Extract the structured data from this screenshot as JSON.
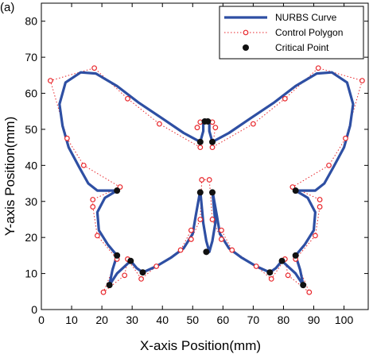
{
  "chart_data": {
    "type": "line",
    "corner_label": "(a)",
    "xlabel": "X-axis Position(mm)",
    "ylabel": "Y-axis Position(mm)",
    "xlim": [
      0,
      108
    ],
    "ylim": [
      0,
      85
    ],
    "xticks": [
      0,
      10,
      20,
      30,
      40,
      50,
      60,
      70,
      80,
      90,
      100
    ],
    "yticks": [
      0,
      10,
      20,
      30,
      40,
      50,
      60,
      70,
      80
    ],
    "legend_position": "top-right",
    "colors": {
      "curve": "#2e4fa3",
      "control": "#e8262b",
      "critical": "#111111"
    },
    "series": [
      {
        "name": "NURBS Curve",
        "style": "line",
        "points": [
          [
            52.5,
            46.5
          ],
          [
            47,
            49
          ],
          [
            40,
            53
          ],
          [
            32,
            57.5
          ],
          [
            25,
            62
          ],
          [
            18,
            65.5
          ],
          [
            13,
            65.8
          ],
          [
            8,
            63
          ],
          [
            6,
            57
          ],
          [
            7,
            51
          ],
          [
            9,
            45
          ],
          [
            12.5,
            39.5
          ],
          [
            15.5,
            35
          ],
          [
            18.5,
            33
          ],
          [
            21.5,
            33
          ],
          [
            25,
            33
          ],
          [
            21,
            31
          ],
          [
            18.5,
            27
          ],
          [
            19,
            22
          ],
          [
            22,
            18
          ],
          [
            25,
            15
          ],
          [
            23.5,
            11
          ],
          [
            22.5,
            6.8
          ],
          [
            25,
            10
          ],
          [
            29.5,
            13.5
          ],
          [
            31.5,
            11.5
          ],
          [
            33.5,
            10.3
          ],
          [
            38,
            12
          ],
          [
            43,
            14.5
          ],
          [
            47,
            17
          ],
          [
            50,
            21
          ],
          [
            51,
            26
          ],
          [
            52.5,
            33
          ],
          [
            53.5,
            24
          ],
          [
            54.5,
            19
          ],
          [
            55.5,
            16
          ],
          [
            56.5,
            19
          ],
          [
            57.5,
            24
          ],
          [
            56.5,
            33
          ],
          [
            58,
            26
          ],
          [
            59,
            21
          ],
          [
            62,
            17
          ],
          [
            66,
            14.5
          ],
          [
            71,
            12
          ],
          [
            75.5,
            10.3
          ],
          [
            77.5,
            11.5
          ],
          [
            79.5,
            13.5
          ],
          [
            84,
            10
          ],
          [
            86.5,
            6.8
          ],
          [
            85.5,
            11
          ],
          [
            84,
            15
          ],
          [
            87,
            18
          ],
          [
            90,
            22
          ],
          [
            90.5,
            27
          ],
          [
            88,
            31
          ],
          [
            84,
            33
          ],
          [
            87.5,
            33
          ],
          [
            90.5,
            33
          ],
          [
            93.5,
            35
          ],
          [
            96.5,
            39.5
          ],
          [
            100,
            45
          ],
          [
            102,
            51
          ],
          [
            103,
            57
          ],
          [
            101,
            63
          ],
          [
            96,
            65.8
          ],
          [
            91,
            65.5
          ],
          [
            84,
            62
          ],
          [
            77,
            57.5
          ],
          [
            69,
            53
          ],
          [
            62,
            49
          ],
          [
            56.5,
            46.5
          ],
          [
            55.5,
            49.5
          ],
          [
            55.5,
            52.2
          ],
          [
            54.5,
            52.2
          ],
          [
            53.5,
            52.2
          ],
          [
            53.5,
            49.5
          ],
          [
            52.5,
            46.5
          ]
        ]
      },
      {
        "name": "Control Polygon",
        "style": "dotted",
        "points": [
          [
            52.5,
            45
          ],
          [
            39,
            51.5
          ],
          [
            28.5,
            58.5
          ],
          [
            17.5,
            67
          ],
          [
            3,
            63.5
          ],
          [
            8.5,
            47.5
          ],
          [
            14,
            40
          ],
          [
            26,
            34
          ],
          [
            17,
            30.5
          ],
          [
            17,
            28.5
          ],
          [
            18.5,
            20.5
          ],
          [
            25,
            14
          ],
          [
            20.5,
            4.8
          ],
          [
            27.5,
            9.5
          ],
          [
            28.5,
            14
          ],
          [
            33,
            8.5
          ],
          [
            38,
            12
          ],
          [
            46,
            16.5
          ],
          [
            49.5,
            22
          ],
          [
            49.5,
            19.5
          ],
          [
            52.5,
            25
          ],
          [
            53,
            36
          ],
          [
            55.5,
            36
          ],
          [
            56.5,
            25
          ],
          [
            59.5,
            19.5
          ],
          [
            59.5,
            22
          ],
          [
            63,
            16.5
          ],
          [
            71,
            12
          ],
          [
            76,
            8.5
          ],
          [
            80.5,
            14
          ],
          [
            81.5,
            9.5
          ],
          [
            88.5,
            4.8
          ],
          [
            84,
            14
          ],
          [
            90.5,
            20.5
          ],
          [
            92,
            28.5
          ],
          [
            92,
            30.5
          ],
          [
            83,
            34
          ],
          [
            95,
            40
          ],
          [
            100.5,
            47.5
          ],
          [
            106,
            63.5
          ],
          [
            91.5,
            67
          ],
          [
            80.5,
            58.5
          ],
          [
            70,
            51.5
          ],
          [
            56.5,
            45
          ],
          [
            57.5,
            50.5
          ],
          [
            56.5,
            52
          ],
          [
            52.5,
            52
          ],
          [
            51.5,
            50.5
          ]
        ]
      },
      {
        "name": "Critical Point",
        "style": "markers",
        "points": [
          [
            52.5,
            46.5
          ],
          [
            56.5,
            46.5
          ],
          [
            54,
            52.2
          ],
          [
            55,
            52.2
          ],
          [
            52.5,
            32.5
          ],
          [
            56.5,
            32.5
          ],
          [
            54.5,
            16
          ],
          [
            25,
            33
          ],
          [
            84,
            33
          ],
          [
            25,
            15
          ],
          [
            84,
            15
          ],
          [
            22.5,
            6.8
          ],
          [
            86.5,
            6.8
          ],
          [
            29.5,
            13.5
          ],
          [
            79.5,
            13.5
          ],
          [
            33.5,
            10.3
          ],
          [
            75.5,
            10.3
          ]
        ]
      }
    ]
  }
}
